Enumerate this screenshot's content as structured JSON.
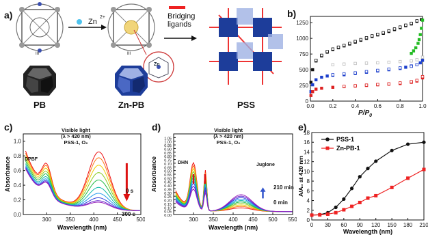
{
  "panels": {
    "a": {
      "label": "a)",
      "zn_label": "Zn",
      "bridging_label": "Bridging\nligands",
      "pb_caption": "PB",
      "znpb_caption": "Zn-PB",
      "pss_caption": "PSS",
      "roman1": "III",
      "roman2": "III",
      "zn_small": "Zn"
    },
    "b": {
      "label": "b)",
      "xlabel": "P/P0",
      "xlabel_main": "P/P",
      "xlabel_sub": "0"
    },
    "c": {
      "label": "c)",
      "mol1": "DPBF",
      "cond1": "Visible light",
      "cond2": "(λ > 420 nm)",
      "cond3": "PSS-1, O₂",
      "t0": "0 s",
      "t1": "300 s",
      "xlabel": "Wavelength  (nm)",
      "ylabel": "Absorbance"
    },
    "d": {
      "label": "d)",
      "mol1": "DHN",
      "mol2": "Juglone",
      "cond1": "Visible light",
      "cond2": "(λ > 420 nm)",
      "cond3": "PSS-1, O₂",
      "t0": "0 min",
      "t1": "210 min",
      "xlabel": "Wavelength  (nm)",
      "ylabel": "Absorbance"
    },
    "e": {
      "label": "e)",
      "xlabel": "Wavelength (nm)",
      "ylabel": "A/A₀ at 420 nm"
    }
  },
  "chart_data": [
    {
      "panel": "b",
      "type": "scatter",
      "xlabel": "P/P0",
      "ylabel": "",
      "xlim": [
        0,
        1.0
      ],
      "ylim": [
        0,
        1350
      ],
      "xticks": [
        0.0,
        0.2,
        0.4,
        0.6,
        0.8,
        1.0
      ],
      "yticks": [
        0,
        250,
        500,
        750,
        1000,
        1250
      ],
      "series": [
        {
          "color": "#111111",
          "filled": true,
          "x": [
            0.005,
            0.02,
            0.05,
            0.1,
            0.15,
            0.2,
            0.25,
            0.3,
            0.35,
            0.4,
            0.45,
            0.5,
            0.55,
            0.6,
            0.65,
            0.7,
            0.75,
            0.8,
            0.85,
            0.9,
            0.95,
            0.99
          ],
          "y": [
            300,
            500,
            640,
            720,
            780,
            820,
            850,
            880,
            910,
            940,
            970,
            1000,
            1030,
            1055,
            1080,
            1110,
            1140,
            1170,
            1200,
            1230,
            1270,
            1300
          ]
        },
        {
          "color": "#111111",
          "filled": false,
          "x": [
            0.05,
            0.1,
            0.15,
            0.2,
            0.25,
            0.3,
            0.35,
            0.4,
            0.45,
            0.5,
            0.55,
            0.6,
            0.65,
            0.7,
            0.75,
            0.8,
            0.85,
            0.9,
            0.95
          ],
          "y": [
            650,
            730,
            790,
            830,
            860,
            890,
            920,
            950,
            980,
            1010,
            1040,
            1065,
            1090,
            1120,
            1150,
            1180,
            1210,
            1240,
            1280
          ]
        },
        {
          "color": "#22bb22",
          "filled": true,
          "x": [
            0.9,
            0.92,
            0.94,
            0.96,
            0.97,
            0.98,
            0.99,
            1.0
          ],
          "y": [
            760,
            800,
            850,
            920,
            980,
            1060,
            1160,
            1290
          ]
        },
        {
          "color": "#bbbbbb",
          "filled": false,
          "x": [
            0.2,
            0.3,
            0.4,
            0.5,
            0.6,
            0.7,
            0.8,
            0.9,
            0.95,
            1.0
          ],
          "y": [
            580,
            590,
            600,
            605,
            610,
            620,
            630,
            640,
            660,
            700
          ]
        },
        {
          "color": "#1c3fcc",
          "filled": true,
          "x": [
            0.005,
            0.02,
            0.05,
            0.1,
            0.15,
            0.2,
            0.3,
            0.4,
            0.5,
            0.6,
            0.7,
            0.8,
            0.85,
            0.9,
            0.95,
            0.98,
            1.0
          ],
          "y": [
            150,
            260,
            340,
            380,
            400,
            410,
            420,
            440,
            460,
            480,
            500,
            520,
            540,
            560,
            580,
            610,
            650
          ]
        },
        {
          "color": "#1c3fcc",
          "filled": false,
          "x": [
            0.2,
            0.3,
            0.4,
            0.5,
            0.6,
            0.7,
            0.8,
            0.9,
            0.95
          ],
          "y": [
            420,
            435,
            450,
            470,
            490,
            510,
            530,
            555,
            580
          ]
        },
        {
          "color": "#dd2222",
          "filled": true,
          "x": [
            0.005,
            0.02,
            0.05,
            0.1,
            0.2,
            0.3,
            0.4,
            0.5,
            0.6,
            0.7,
            0.8,
            0.9,
            0.95,
            1.0
          ],
          "y": [
            90,
            150,
            190,
            205,
            220,
            230,
            240,
            250,
            260,
            270,
            280,
            300,
            320,
            370
          ]
        },
        {
          "color": "#dd2222",
          "filled": false,
          "x": [
            0.3,
            0.4,
            0.5,
            0.6,
            0.7,
            0.8,
            0.9,
            0.95,
            1.0
          ],
          "y": [
            235,
            245,
            255,
            265,
            275,
            290,
            310,
            330,
            390
          ]
        }
      ]
    },
    {
      "panel": "c",
      "type": "line",
      "xlabel": "Wavelength  (nm)",
      "ylabel": "Absorbance",
      "xlim": [
        250,
        500
      ],
      "ylim": [
        0,
        1.1
      ],
      "xticks": [
        300,
        350,
        400,
        450,
        500
      ],
      "yticks": [
        0.0,
        0.2,
        0.4,
        0.6,
        0.8,
        1.0
      ],
      "peak_heights_411": [
        0.78,
        0.7,
        0.6,
        0.5,
        0.4,
        0.3,
        0.22,
        0.16,
        0.12,
        0.1
      ],
      "colors": [
        "#ee1111",
        "#ff7711",
        "#eecc00",
        "#88cc22",
        "#22bb44",
        "#11bbaa",
        "#2299ee",
        "#3344dd",
        "#6622cc",
        "#9922bb"
      ]
    },
    {
      "panel": "d",
      "type": "line",
      "xlabel": "Wavelength  (nm)",
      "ylabel": "Absorbance",
      "xlim": [
        250,
        550
      ],
      "ylim": [
        0,
        1.1
      ],
      "xticks": [
        300,
        350,
        400,
        450,
        500,
        550
      ],
      "yticks": [
        0.0,
        0.05,
        0.1,
        0.15,
        0.2,
        0.25,
        0.3,
        0.35,
        0.4,
        0.45,
        0.5,
        0.55,
        0.6,
        0.65,
        0.7,
        0.75,
        0.8,
        0.85,
        0.9,
        0.95,
        1.0,
        1.05
      ],
      "peak_heights_420": [
        0.05,
        0.07,
        0.09,
        0.11,
        0.13,
        0.15,
        0.17,
        0.19,
        0.21,
        0.23
      ],
      "colors": [
        "#ee1111",
        "#ff7711",
        "#eecc00",
        "#88cc22",
        "#22bb44",
        "#11bbaa",
        "#2299ee",
        "#3344dd",
        "#6622cc",
        "#9922bb"
      ]
    },
    {
      "panel": "e",
      "type": "line",
      "xlabel": "Wavelength (nm)",
      "ylabel": "A/A₀ at 420 nm",
      "xlim": [
        0,
        210
      ],
      "ylim": [
        0,
        18
      ],
      "xticks": [
        0,
        30,
        60,
        90,
        120,
        150,
        180,
        210
      ],
      "yticks": [
        0,
        2,
        4,
        6,
        8,
        10,
        12,
        14,
        16,
        18
      ],
      "series": [
        {
          "name": "PSS-1",
          "color": "#111111",
          "marker": "circle",
          "x": [
            0,
            15,
            30,
            45,
            60,
            75,
            90,
            105,
            120,
            150,
            180,
            210
          ],
          "y": [
            1.0,
            1.1,
            1.5,
            2.6,
            4.3,
            6.5,
            8.9,
            10.6,
            12.1,
            14.3,
            15.6,
            16.0
          ]
        },
        {
          "name": "Zn-PB-1",
          "color": "#ee2222",
          "marker": "square",
          "x": [
            0,
            15,
            30,
            45,
            60,
            75,
            90,
            105,
            120,
            150,
            180,
            210
          ],
          "y": [
            1.0,
            1.05,
            1.2,
            1.5,
            2.1,
            2.8,
            3.6,
            4.5,
            5.0,
            6.7,
            8.6,
            10.4
          ]
        }
      ]
    }
  ]
}
